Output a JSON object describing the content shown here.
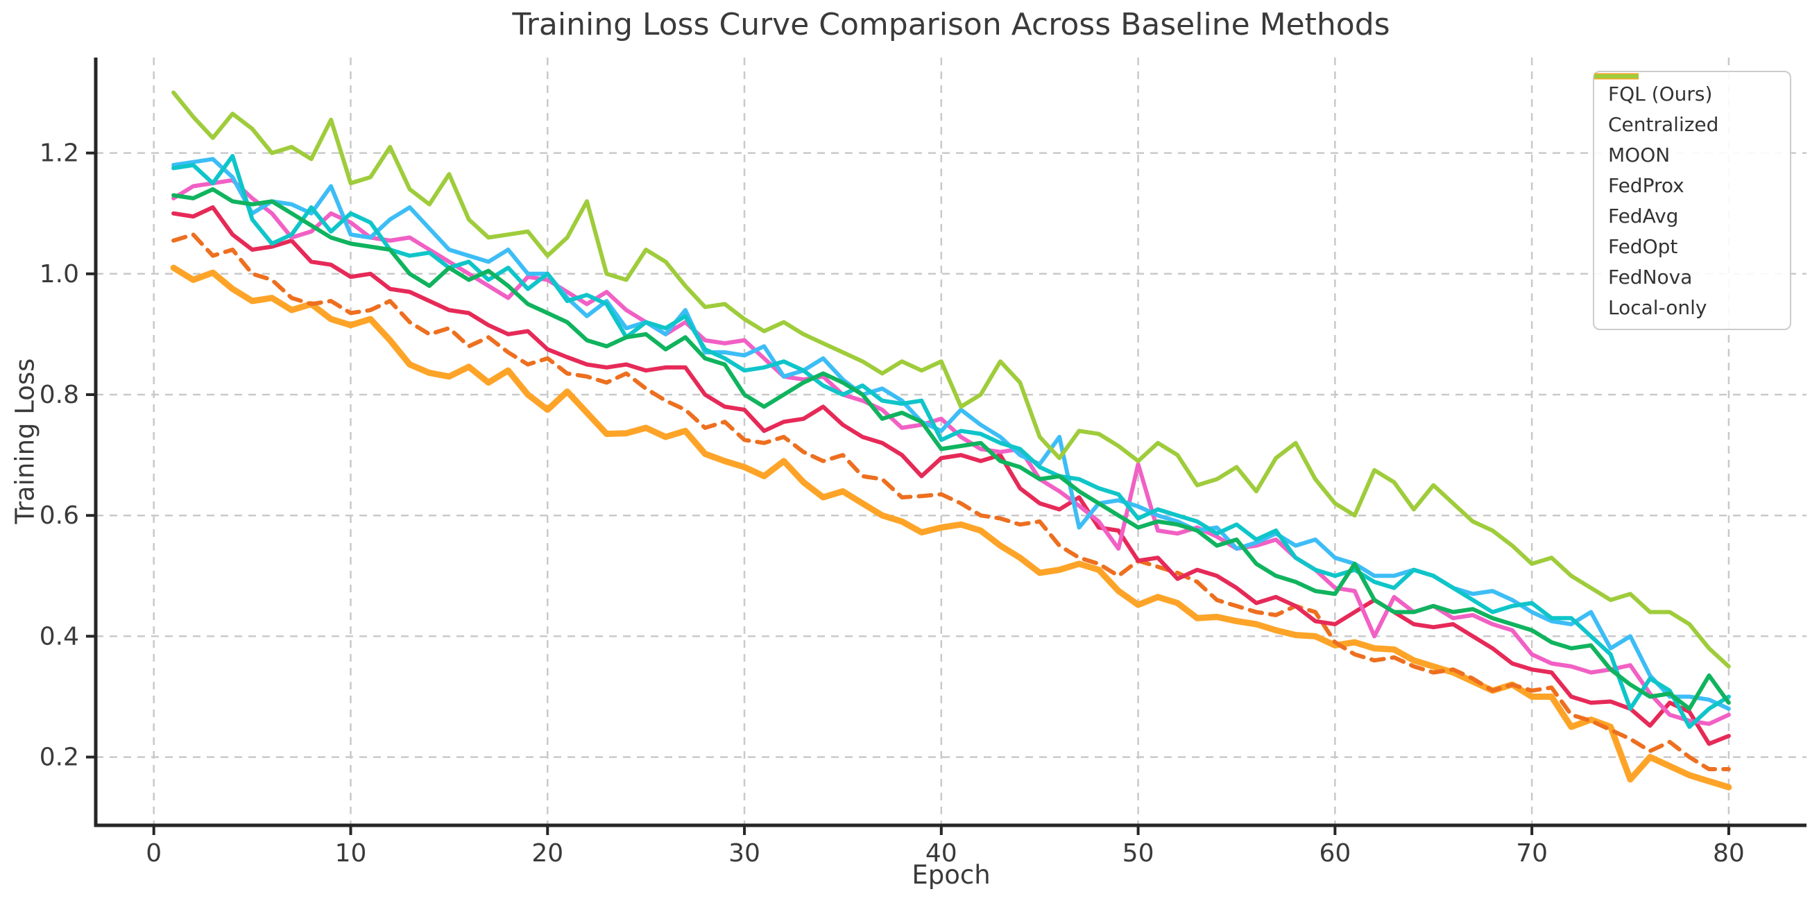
{
  "page": {
    "background": "#ffffff"
  },
  "chart_data": {
    "type": "line",
    "title": "Training Loss Curve Comparison Across Baseline Methods",
    "xlabel": "Epoch",
    "ylabel": "Training Loss",
    "xlim": [
      -2.95,
      83.95
    ],
    "ylim": [
      0.087,
      1.358
    ],
    "xticks": [
      0,
      10,
      20,
      30,
      40,
      50,
      60,
      70,
      80
    ],
    "yticks": [
      0.2,
      0.4,
      0.6,
      0.8,
      1.0,
      1.2
    ],
    "grid": true,
    "grid_color": "#c9c9c9",
    "axis_color": "#262626",
    "text_color": "#3a3a3a",
    "legend_position": "upper right",
    "epochs_start": 1,
    "series": [
      {
        "name": "FQL (Ours)",
        "color": "#FDA428",
        "style": "solid",
        "line_width": 9,
        "values": [
          1.01,
          0.99,
          1.002,
          0.975,
          0.955,
          0.96,
          0.94,
          0.95,
          0.925,
          0.915,
          0.925,
          0.89,
          0.85,
          0.836,
          0.83,
          0.846,
          0.82,
          0.84,
          0.8,
          0.775,
          0.805,
          0.77,
          0.735,
          0.736,
          0.745,
          0.73,
          0.74,
          0.702,
          0.69,
          0.68,
          0.665,
          0.69,
          0.655,
          0.63,
          0.64,
          0.62,
          0.6,
          0.59,
          0.572,
          0.58,
          0.585,
          0.575,
          0.55,
          0.53,
          0.505,
          0.51,
          0.52,
          0.51,
          0.475,
          0.452,
          0.465,
          0.455,
          0.43,
          0.432,
          0.425,
          0.42,
          0.41,
          0.402,
          0.4,
          0.385,
          0.39,
          0.38,
          0.378,
          0.36,
          0.35,
          0.34,
          0.325,
          0.31,
          0.32,
          0.3,
          0.3,
          0.25,
          0.262,
          0.25,
          0.163,
          0.2,
          0.185,
          0.17,
          0.16,
          0.15
        ]
      },
      {
        "name": "Centralized",
        "color": "#ED6F1F",
        "style": "dashed",
        "line_width": 6,
        "values": [
          1.055,
          1.065,
          1.03,
          1.04,
          1.0,
          0.99,
          0.96,
          0.95,
          0.955,
          0.935,
          0.94,
          0.955,
          0.92,
          0.9,
          0.91,
          0.88,
          0.895,
          0.87,
          0.85,
          0.86,
          0.835,
          0.83,
          0.82,
          0.835,
          0.81,
          0.79,
          0.775,
          0.745,
          0.755,
          0.725,
          0.72,
          0.73,
          0.705,
          0.69,
          0.7,
          0.665,
          0.66,
          0.63,
          0.632,
          0.635,
          0.62,
          0.6,
          0.595,
          0.585,
          0.59,
          0.55,
          0.53,
          0.52,
          0.5,
          0.525,
          0.515,
          0.505,
          0.49,
          0.46,
          0.45,
          0.44,
          0.435,
          0.45,
          0.44,
          0.39,
          0.37,
          0.36,
          0.365,
          0.35,
          0.34,
          0.345,
          0.33,
          0.31,
          0.32,
          0.31,
          0.315,
          0.27,
          0.26,
          0.245,
          0.23,
          0.21,
          0.225,
          0.2,
          0.18,
          0.18
        ]
      },
      {
        "name": "MOON",
        "color": "#E62A58",
        "style": "solid",
        "line_width": 6,
        "values": [
          1.1,
          1.095,
          1.11,
          1.065,
          1.04,
          1.045,
          1.055,
          1.02,
          1.015,
          0.995,
          1.0,
          0.975,
          0.97,
          0.955,
          0.94,
          0.935,
          0.915,
          0.9,
          0.905,
          0.875,
          0.862,
          0.85,
          0.845,
          0.85,
          0.84,
          0.845,
          0.845,
          0.8,
          0.78,
          0.775,
          0.74,
          0.755,
          0.76,
          0.78,
          0.75,
          0.73,
          0.72,
          0.7,
          0.665,
          0.695,
          0.7,
          0.69,
          0.7,
          0.645,
          0.62,
          0.61,
          0.63,
          0.58,
          0.575,
          0.525,
          0.53,
          0.495,
          0.51,
          0.5,
          0.48,
          0.455,
          0.465,
          0.45,
          0.425,
          0.42,
          0.44,
          0.46,
          0.44,
          0.42,
          0.415,
          0.42,
          0.4,
          0.38,
          0.355,
          0.345,
          0.34,
          0.3,
          0.29,
          0.292,
          0.28,
          0.252,
          0.29,
          0.275,
          0.222,
          0.235
        ]
      },
      {
        "name": "FedProx",
        "color": "#F160C4",
        "style": "solid",
        "line_width": 6,
        "values": [
          1.125,
          1.145,
          1.15,
          1.155,
          1.125,
          1.1,
          1.06,
          1.07,
          1.1,
          1.085,
          1.06,
          1.055,
          1.06,
          1.04,
          1.02,
          1.0,
          0.98,
          0.96,
          0.995,
          0.99,
          0.97,
          0.95,
          0.97,
          0.94,
          0.92,
          0.9,
          0.92,
          0.89,
          0.885,
          0.89,
          0.86,
          0.83,
          0.825,
          0.83,
          0.8,
          0.79,
          0.775,
          0.745,
          0.75,
          0.76,
          0.73,
          0.71,
          0.705,
          0.71,
          0.66,
          0.64,
          0.616,
          0.59,
          0.545,
          0.685,
          0.575,
          0.57,
          0.58,
          0.565,
          0.545,
          0.55,
          0.56,
          0.53,
          0.51,
          0.48,
          0.475,
          0.4,
          0.465,
          0.44,
          0.45,
          0.43,
          0.435,
          0.42,
          0.41,
          0.37,
          0.355,
          0.35,
          0.34,
          0.345,
          0.352,
          0.305,
          0.27,
          0.26,
          0.255,
          0.27
        ]
      },
      {
        "name": "FedAvg",
        "color": "#3DBDF6",
        "style": "solid",
        "line_width": 6,
        "values": [
          1.18,
          1.185,
          1.19,
          1.16,
          1.1,
          1.12,
          1.115,
          1.1,
          1.145,
          1.065,
          1.06,
          1.09,
          1.11,
          1.075,
          1.04,
          1.03,
          1.02,
          1.04,
          1.0,
          1.0,
          0.96,
          0.93,
          0.955,
          0.91,
          0.92,
          0.9,
          0.94,
          0.87,
          0.87,
          0.865,
          0.88,
          0.83,
          0.84,
          0.86,
          0.825,
          0.8,
          0.81,
          0.79,
          0.755,
          0.74,
          0.775,
          0.75,
          0.73,
          0.7,
          0.685,
          0.73,
          0.58,
          0.62,
          0.625,
          0.615,
          0.6,
          0.59,
          0.575,
          0.58,
          0.545,
          0.555,
          0.57,
          0.55,
          0.56,
          0.53,
          0.52,
          0.5,
          0.5,
          0.51,
          0.5,
          0.48,
          0.47,
          0.475,
          0.46,
          0.44,
          0.425,
          0.42,
          0.44,
          0.38,
          0.4,
          0.335,
          0.3,
          0.3,
          0.295,
          0.28
        ]
      },
      {
        "name": "FedOpt",
        "color": "#0FC5C9",
        "style": "solid",
        "line_width": 6,
        "values": [
          1.175,
          1.18,
          1.15,
          1.195,
          1.09,
          1.05,
          1.065,
          1.11,
          1.07,
          1.1,
          1.085,
          1.04,
          1.03,
          1.035,
          1.01,
          1.02,
          0.99,
          1.01,
          0.975,
          1.0,
          0.955,
          0.965,
          0.95,
          0.895,
          0.92,
          0.91,
          0.93,
          0.875,
          0.86,
          0.84,
          0.845,
          0.855,
          0.84,
          0.815,
          0.8,
          0.815,
          0.79,
          0.785,
          0.79,
          0.725,
          0.74,
          0.735,
          0.72,
          0.71,
          0.68,
          0.665,
          0.66,
          0.645,
          0.635,
          0.595,
          0.61,
          0.6,
          0.59,
          0.57,
          0.585,
          0.56,
          0.575,
          0.53,
          0.51,
          0.5,
          0.51,
          0.49,
          0.48,
          0.51,
          0.5,
          0.48,
          0.46,
          0.44,
          0.45,
          0.455,
          0.43,
          0.43,
          0.4,
          0.37,
          0.28,
          0.33,
          0.31,
          0.25,
          0.28,
          0.3
        ]
      },
      {
        "name": "FedNova",
        "color": "#10B35E",
        "style": "solid",
        "line_width": 6,
        "values": [
          1.13,
          1.125,
          1.14,
          1.12,
          1.115,
          1.12,
          1.1,
          1.08,
          1.06,
          1.05,
          1.045,
          1.04,
          1.0,
          0.98,
          1.01,
          0.99,
          1.005,
          0.98,
          0.95,
          0.935,
          0.92,
          0.89,
          0.88,
          0.895,
          0.9,
          0.875,
          0.895,
          0.86,
          0.85,
          0.8,
          0.78,
          0.8,
          0.82,
          0.835,
          0.82,
          0.8,
          0.76,
          0.77,
          0.755,
          0.71,
          0.715,
          0.72,
          0.69,
          0.68,
          0.66,
          0.665,
          0.64,
          0.62,
          0.6,
          0.58,
          0.59,
          0.585,
          0.575,
          0.55,
          0.56,
          0.52,
          0.5,
          0.49,
          0.475,
          0.47,
          0.52,
          0.46,
          0.44,
          0.44,
          0.45,
          0.44,
          0.445,
          0.43,
          0.42,
          0.41,
          0.39,
          0.38,
          0.385,
          0.345,
          0.32,
          0.3,
          0.305,
          0.28,
          0.335,
          0.29
        ]
      },
      {
        "name": "Local-only",
        "color": "#9FCC3B",
        "style": "solid",
        "line_width": 6,
        "values": [
          1.3,
          1.26,
          1.225,
          1.265,
          1.24,
          1.2,
          1.21,
          1.19,
          1.255,
          1.15,
          1.16,
          1.21,
          1.14,
          1.115,
          1.165,
          1.09,
          1.06,
          1.065,
          1.07,
          1.03,
          1.06,
          1.12,
          1.0,
          0.99,
          1.04,
          1.02,
          0.98,
          0.945,
          0.95,
          0.925,
          0.905,
          0.92,
          0.9,
          0.885,
          0.87,
          0.855,
          0.835,
          0.855,
          0.84,
          0.855,
          0.78,
          0.8,
          0.855,
          0.82,
          0.73,
          0.695,
          0.74,
          0.735,
          0.715,
          0.69,
          0.72,
          0.7,
          0.65,
          0.66,
          0.68,
          0.64,
          0.695,
          0.72,
          0.66,
          0.62,
          0.6,
          0.675,
          0.655,
          0.61,
          0.65,
          0.62,
          0.59,
          0.575,
          0.55,
          0.52,
          0.53,
          0.5,
          0.48,
          0.46,
          0.47,
          0.44,
          0.44,
          0.42,
          0.38,
          0.35
        ]
      }
    ]
  }
}
